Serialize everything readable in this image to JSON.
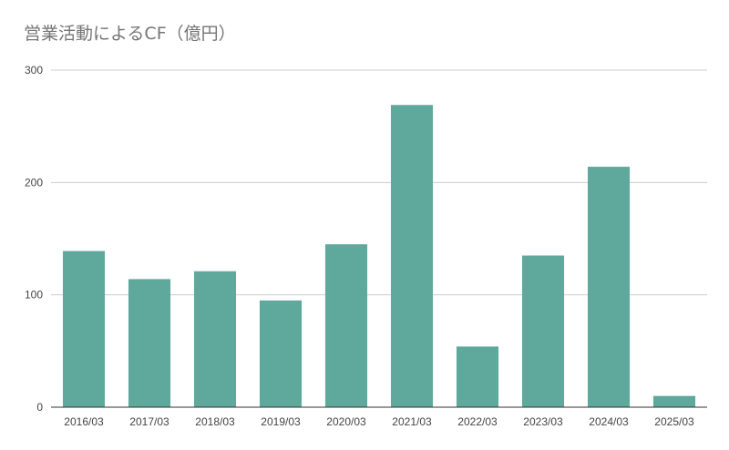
{
  "chart_data": {
    "type": "bar",
    "title": "営業活動によるCF（億円）",
    "categories": [
      "2016/03",
      "2017/03",
      "2018/03",
      "2019/03",
      "2020/03",
      "2021/03",
      "2022/03",
      "2023/03",
      "2024/03",
      "2025/03"
    ],
    "values": [
      139,
      114,
      121,
      95,
      145,
      269,
      54,
      135,
      214,
      10
    ],
    "ylim": [
      0,
      300
    ],
    "yticks": [
      0,
      100,
      200,
      300
    ],
    "grid": true,
    "legend": "none",
    "bar_color": "#5fa89c",
    "grid_color": "#cccccc"
  }
}
